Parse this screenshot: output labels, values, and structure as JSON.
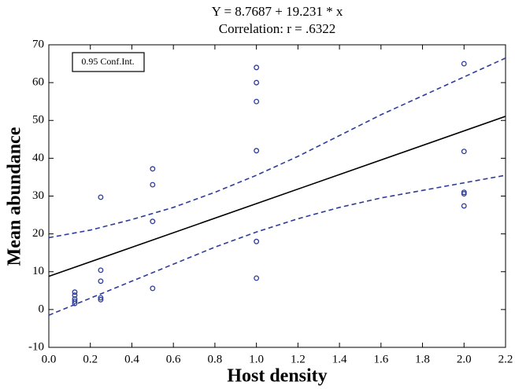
{
  "chart_data": {
    "type": "scatter",
    "title": "Y = 8.7687 + 19.231 * x",
    "subtitle": "Correlation: r = .6322",
    "x_label": "Host density",
    "y_label": "Mean abundance",
    "xlim": [
      0,
      2.2
    ],
    "ylim": [
      -10,
      70
    ],
    "xticks": [
      {
        "value": 0,
        "label": "0.0"
      },
      {
        "value": 0.2,
        "label": "0.2"
      },
      {
        "value": 0.4,
        "label": "0.4"
      },
      {
        "value": 0.6,
        "label": "0.6"
      },
      {
        "value": 0.8,
        "label": "0.8"
      },
      {
        "value": 1,
        "label": "1.0"
      },
      {
        "value": 1.2,
        "label": "1.2"
      },
      {
        "value": 1.4,
        "label": "1.4"
      },
      {
        "value": 1.6,
        "label": "1.6"
      },
      {
        "value": 1.8,
        "label": "1.8"
      },
      {
        "value": 2,
        "label": "2.0"
      },
      {
        "value": 2.2,
        "label": "2.2"
      }
    ],
    "yticks": [
      -10,
      0,
      10,
      20,
      30,
      40,
      50,
      60,
      70
    ],
    "grid": false,
    "legend": "top-left",
    "series": [
      {
        "kind": "scatter",
        "color": "#2d3c9b",
        "x": [
          0.125,
          0.125,
          0.125,
          0.125,
          0.125,
          0.25,
          0.25,
          0.25,
          0.25,
          0.25,
          0.5,
          0.5,
          0.5,
          0.5,
          1,
          1,
          1,
          1,
          1,
          1,
          2,
          2,
          2,
          2,
          2
        ],
        "values": [
          4.6,
          3.8,
          2.8,
          2.2,
          1.6,
          29.7,
          10.4,
          7.5,
          3.1,
          2.6,
          37.2,
          33,
          23.3,
          5.6,
          64,
          60,
          55,
          42,
          18,
          8.3,
          65,
          41.8,
          31,
          30.6,
          27.4
        ]
      },
      {
        "kind": "line",
        "color": "#000000",
        "dash": false,
        "x": [
          0,
          2.2
        ],
        "values": [
          8.7687,
          51.08
        ]
      },
      {
        "kind": "line",
        "name": "0.95 Conf.Int.",
        "color": "#2d3c9b",
        "dash": true,
        "x": [
          0,
          0.2,
          0.4,
          0.6,
          0.8,
          1,
          1.2,
          1.4,
          1.6,
          1.8,
          2,
          2.2
        ],
        "values": [
          19,
          21,
          23.8,
          27,
          31,
          35.5,
          40.5,
          46,
          51.5,
          56.5,
          61.5,
          66.5
        ]
      },
      {
        "kind": "line",
        "color": "#2d3c9b",
        "dash": true,
        "x": [
          0,
          0.2,
          0.4,
          0.6,
          0.8,
          1,
          1.2,
          1.4,
          1.6,
          1.8,
          2,
          2.2
        ],
        "values": [
          -1.5,
          3,
          7.5,
          12,
          16.5,
          20.5,
          24,
          27,
          29.5,
          31.5,
          33.5,
          35.5
        ]
      }
    ]
  }
}
